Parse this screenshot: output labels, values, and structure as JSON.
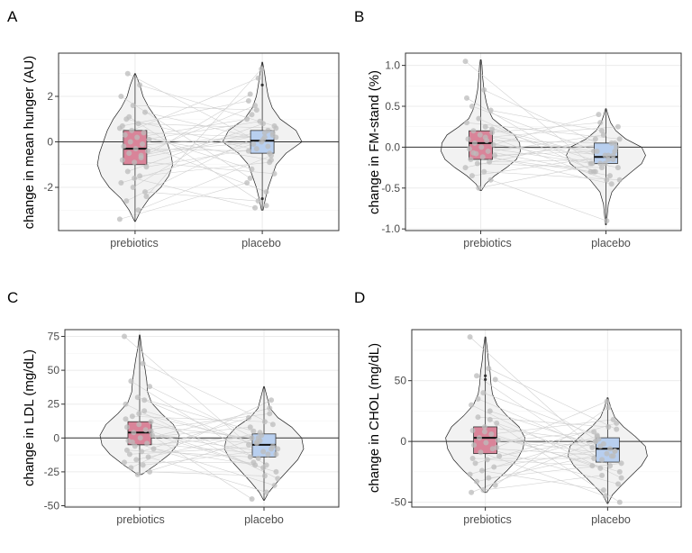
{
  "colors": {
    "prebiotics_fill": "#d98499",
    "placebo_fill": "#b8cfef",
    "violin_fill": "#f2f2f2",
    "point": "#bcbcbc",
    "link": "#d0d0d0",
    "grid": "#ebebeb",
    "zero_line": "#333333"
  },
  "chart_data": [
    {
      "panel": "A",
      "type": "violin-box",
      "ylabel": "change in mean hunger (AU)",
      "categories": [
        "prebiotics",
        "placebo"
      ],
      "ylim": [
        -3.9,
        3.9
      ],
      "yticks": [
        -2,
        0,
        2
      ],
      "ytick_labels": [
        "-2",
        "0",
        "2"
      ],
      "minor_ticks": [
        -3,
        -1,
        1,
        3
      ],
      "groups": [
        {
          "name": "prebiotics",
          "min": -3.5,
          "q1": -1.0,
          "median": -0.3,
          "q3": 0.5,
          "max": 3.0,
          "density": [
            [
              -3.5,
              0.01
            ],
            [
              -3.0,
              0.15
            ],
            [
              -2.5,
              0.35
            ],
            [
              -2.0,
              0.65
            ],
            [
              -1.5,
              0.85
            ],
            [
              -1.0,
              0.95
            ],
            [
              -0.5,
              0.9
            ],
            [
              0.0,
              0.8
            ],
            [
              0.5,
              0.7
            ],
            [
              1.0,
              0.55
            ],
            [
              1.5,
              0.35
            ],
            [
              2.0,
              0.2
            ],
            [
              2.5,
              0.12
            ],
            [
              3.0,
              0.01
            ]
          ],
          "outliers": []
        },
        {
          "name": "placebo",
          "min": -3.0,
          "q1": -0.5,
          "median": 0.05,
          "q3": 0.5,
          "max": 3.5,
          "density": [
            [
              -3.0,
              0.02
            ],
            [
              -2.5,
              0.08
            ],
            [
              -2.0,
              0.15
            ],
            [
              -1.5,
              0.25
            ],
            [
              -1.0,
              0.35
            ],
            [
              -0.5,
              0.6
            ],
            [
              0.0,
              1.0
            ],
            [
              0.5,
              0.85
            ],
            [
              1.0,
              0.45
            ],
            [
              1.5,
              0.25
            ],
            [
              2.0,
              0.15
            ],
            [
              2.5,
              0.1
            ],
            [
              3.0,
              0.06
            ],
            [
              3.5,
              0.01
            ]
          ],
          "outliers": [
            2.5,
            -2.5
          ]
        }
      ],
      "pairs": [
        [
          -3.4,
          -1.8
        ],
        [
          -3.0,
          -0.6
        ],
        [
          -2.6,
          0.4
        ],
        [
          -2.2,
          -2.6
        ],
        [
          -2.0,
          1.2
        ],
        [
          -1.8,
          0.2
        ],
        [
          -1.5,
          -0.9
        ],
        [
          -1.3,
          0.8
        ],
        [
          -1.1,
          -0.3
        ],
        [
          -0.9,
          2.1
        ],
        [
          -0.8,
          -1.4
        ],
        [
          -0.6,
          0.5
        ],
        [
          -0.5,
          0.0
        ],
        [
          -0.4,
          1.6
        ],
        [
          -0.3,
          -0.4
        ],
        [
          -0.2,
          0.3
        ],
        [
          -0.1,
          -2.2
        ],
        [
          0.0,
          0.9
        ],
        [
          0.1,
          -0.1
        ],
        [
          0.2,
          1.0
        ],
        [
          0.3,
          -0.8
        ],
        [
          0.4,
          0.2
        ],
        [
          0.5,
          2.8
        ],
        [
          0.6,
          -1.2
        ],
        [
          0.8,
          0.6
        ],
        [
          1.0,
          -0.5
        ],
        [
          1.3,
          0.1
        ],
        [
          1.6,
          1.4
        ],
        [
          2.0,
          -1.6
        ],
        [
          2.5,
          0.7
        ],
        [
          3.0,
          -0.2
        ],
        [
          -2.4,
          3.2
        ],
        [
          -1.6,
          -2.9
        ],
        [
          0.7,
          1.8
        ],
        [
          -0.7,
          0.4
        ],
        [
          1.1,
          -2.8
        ]
      ]
    },
    {
      "panel": "B",
      "type": "violin-box",
      "ylabel": "change in FM-stand (%)",
      "categories": [
        "prebiotics",
        "placebo"
      ],
      "ylim": [
        -1.02,
        1.15
      ],
      "yticks": [
        -1.0,
        -0.5,
        0.0,
        0.5,
        1.0
      ],
      "ytick_labels": [
        "-1.0",
        "-0.5",
        "0.0",
        "0.5",
        "1.0"
      ],
      "minor_ticks": [
        -0.75,
        -0.25,
        0.25,
        0.75
      ],
      "groups": [
        {
          "name": "prebiotics",
          "min": -0.53,
          "q1": -0.15,
          "median": 0.05,
          "q3": 0.2,
          "max": 1.07,
          "density": [
            [
              -0.53,
              0.02
            ],
            [
              -0.45,
              0.12
            ],
            [
              -0.35,
              0.35
            ],
            [
              -0.25,
              0.65
            ],
            [
              -0.15,
              0.9
            ],
            [
              -0.05,
              1.0
            ],
            [
              0.05,
              0.98
            ],
            [
              0.15,
              0.85
            ],
            [
              0.25,
              0.55
            ],
            [
              0.35,
              0.3
            ],
            [
              0.45,
              0.2
            ],
            [
              0.55,
              0.14
            ],
            [
              0.7,
              0.08
            ],
            [
              0.85,
              0.05
            ],
            [
              1.0,
              0.03
            ],
            [
              1.07,
              0.01
            ]
          ],
          "outliers": []
        },
        {
          "name": "placebo",
          "min": -0.95,
          "q1": -0.2,
          "median": -0.12,
          "q3": 0.05,
          "max": 0.47,
          "density": [
            [
              -0.95,
              0.01
            ],
            [
              -0.85,
              0.03
            ],
            [
              -0.7,
              0.06
            ],
            [
              -0.55,
              0.15
            ],
            [
              -0.4,
              0.4
            ],
            [
              -0.3,
              0.65
            ],
            [
              -0.2,
              0.9
            ],
            [
              -0.1,
              1.0
            ],
            [
              0.0,
              0.9
            ],
            [
              0.1,
              0.5
            ],
            [
              0.2,
              0.25
            ],
            [
              0.3,
              0.12
            ],
            [
              0.4,
              0.05
            ],
            [
              0.47,
              0.01
            ]
          ],
          "outliers": []
        }
      ],
      "pairs": [
        [
          1.05,
          -0.2
        ],
        [
          0.7,
          -0.05
        ],
        [
          0.5,
          -0.1
        ],
        [
          0.45,
          0.2
        ],
        [
          0.35,
          -0.3
        ],
        [
          0.3,
          0.1
        ],
        [
          0.25,
          -0.15
        ],
        [
          0.2,
          -0.4
        ],
        [
          0.18,
          0.3
        ],
        [
          0.15,
          -0.05
        ],
        [
          0.1,
          -0.25
        ],
        [
          0.08,
          0.05
        ],
        [
          0.05,
          -0.1
        ],
        [
          0.03,
          0.4
        ],
        [
          0.0,
          -0.2
        ],
        [
          -0.02,
          0.0
        ],
        [
          -0.05,
          -0.35
        ],
        [
          -0.08,
          0.15
        ],
        [
          -0.1,
          -0.05
        ],
        [
          -0.12,
          -0.3
        ],
        [
          -0.15,
          0.05
        ],
        [
          -0.18,
          -0.15
        ],
        [
          -0.2,
          -0.25
        ],
        [
          -0.25,
          0.1
        ],
        [
          -0.3,
          -0.4
        ],
        [
          -0.35,
          -0.1
        ],
        [
          -0.4,
          -0.9
        ],
        [
          -0.5,
          -0.2
        ],
        [
          0.6,
          -0.3
        ],
        [
          0.12,
          0.25
        ],
        [
          -0.07,
          -0.45
        ],
        [
          0.22,
          -0.2
        ]
      ]
    },
    {
      "panel": "C",
      "type": "violin-box",
      "ylabel": "change in LDL (mg/dL)",
      "categories": [
        "prebiotics",
        "placebo"
      ],
      "ylim": [
        -51,
        80
      ],
      "yticks": [
        -50,
        -25,
        0,
        25,
        50,
        75
      ],
      "ytick_labels": [
        "-50",
        "-25",
        "0",
        "25",
        "50",
        "75"
      ],
      "minor_ticks": [
        -37.5,
        -12.5,
        12.5,
        37.5,
        62.5
      ],
      "groups": [
        {
          "name": "prebiotics",
          "min": -27,
          "q1": -5,
          "median": 4,
          "q3": 12,
          "max": 76,
          "density": [
            [
              -27,
              0.05
            ],
            [
              -20,
              0.4
            ],
            [
              -12,
              0.75
            ],
            [
              -5,
              0.95
            ],
            [
              2,
              1.0
            ],
            [
              10,
              0.85
            ],
            [
              18,
              0.55
            ],
            [
              26,
              0.3
            ],
            [
              34,
              0.2
            ],
            [
              42,
              0.18
            ],
            [
              50,
              0.14
            ],
            [
              58,
              0.1
            ],
            [
              66,
              0.05
            ],
            [
              76,
              0.01
            ]
          ],
          "outliers": []
        },
        {
          "name": "placebo",
          "min": -46,
          "q1": -14,
          "median": -5,
          "q3": 3,
          "max": 38,
          "density": [
            [
              -46,
              0.01
            ],
            [
              -40,
              0.12
            ],
            [
              -32,
              0.35
            ],
            [
              -24,
              0.6
            ],
            [
              -16,
              0.85
            ],
            [
              -8,
              1.0
            ],
            [
              0,
              0.95
            ],
            [
              8,
              0.7
            ],
            [
              15,
              0.35
            ],
            [
              22,
              0.15
            ],
            [
              30,
              0.08
            ],
            [
              38,
              0.01
            ]
          ],
          "outliers": []
        }
      ],
      "pairs": [
        [
          75,
          -5
        ],
        [
          55,
          10
        ],
        [
          42,
          -20
        ],
        [
          38,
          -2
        ],
        [
          30,
          5
        ],
        [
          25,
          -30
        ],
        [
          20,
          -8
        ],
        [
          16,
          12
        ],
        [
          12,
          -15
        ],
        [
          10,
          0
        ],
        [
          8,
          -25
        ],
        [
          6,
          18
        ],
        [
          4,
          -10
        ],
        [
          2,
          -4
        ],
        [
          0,
          8
        ],
        [
          -2,
          -35
        ],
        [
          -4,
          -12
        ],
        [
          -6,
          2
        ],
        [
          -8,
          -20
        ],
        [
          -10,
          15
        ],
        [
          -12,
          -6
        ],
        [
          -14,
          -40
        ],
        [
          -16,
          4
        ],
        [
          -18,
          -18
        ],
        [
          -20,
          -8
        ],
        [
          -22,
          28
        ],
        [
          -25,
          -28
        ],
        [
          -27,
          0
        ],
        [
          14,
          -45
        ],
        [
          28,
          -12
        ],
        [
          -3,
          22
        ],
        [
          5,
          -22
        ],
        [
          18,
          -3
        ],
        [
          -9,
          -14
        ]
      ]
    },
    {
      "panel": "D",
      "type": "violin-box",
      "ylabel": "change in CHOL (mg/dL)",
      "categories": [
        "prebiotics",
        "placebo"
      ],
      "ylim": [
        -54,
        92
      ],
      "yticks": [
        -50,
        0,
        50
      ],
      "ytick_labels": [
        "-50",
        "0",
        "50"
      ],
      "minor_ticks": [
        -25,
        25,
        75
      ],
      "groups": [
        {
          "name": "prebiotics",
          "min": -42,
          "q1": -10,
          "median": 3,
          "q3": 12,
          "max": 86,
          "density": [
            [
              -42,
              0.03
            ],
            [
              -33,
              0.25
            ],
            [
              -24,
              0.55
            ],
            [
              -15,
              0.8
            ],
            [
              -6,
              0.95
            ],
            [
              3,
              1.0
            ],
            [
              12,
              0.85
            ],
            [
              21,
              0.55
            ],
            [
              30,
              0.3
            ],
            [
              39,
              0.18
            ],
            [
              48,
              0.14
            ],
            [
              57,
              0.12
            ],
            [
              66,
              0.08
            ],
            [
              76,
              0.05
            ],
            [
              86,
              0.01
            ]
          ],
          "outliers": [
            51,
            54
          ]
        },
        {
          "name": "placebo",
          "min": -51,
          "q1": -17,
          "median": -6,
          "q3": 3,
          "max": 36,
          "density": [
            [
              -51,
              0.01
            ],
            [
              -44,
              0.12
            ],
            [
              -36,
              0.35
            ],
            [
              -28,
              0.6
            ],
            [
              -20,
              0.85
            ],
            [
              -12,
              1.0
            ],
            [
              -4,
              0.95
            ],
            [
              4,
              0.7
            ],
            [
              12,
              0.4
            ],
            [
              20,
              0.18
            ],
            [
              28,
              0.08
            ],
            [
              36,
              0.01
            ]
          ],
          "outliers": []
        }
      ],
      "pairs": [
        [
          86,
          -5
        ],
        [
          60,
          10
        ],
        [
          54,
          -20
        ],
        [
          51,
          -2
        ],
        [
          40,
          5
        ],
        [
          30,
          -30
        ],
        [
          25,
          -8
        ],
        [
          20,
          12
        ],
        [
          15,
          -15
        ],
        [
          12,
          0
        ],
        [
          9,
          -25
        ],
        [
          6,
          18
        ],
        [
          3,
          -10
        ],
        [
          1,
          -4
        ],
        [
          -1,
          8
        ],
        [
          -3,
          -35
        ],
        [
          -6,
          -12
        ],
        [
          -9,
          -45
        ],
        [
          -12,
          2
        ],
        [
          -15,
          -20
        ],
        [
          -18,
          15
        ],
        [
          -21,
          -6
        ],
        [
          -24,
          -40
        ],
        [
          -27,
          4
        ],
        [
          -30,
          -18
        ],
        [
          -33,
          -8
        ],
        [
          -36,
          28
        ],
        [
          -40,
          -28
        ],
        [
          -42,
          0
        ],
        [
          18,
          -50
        ],
        [
          35,
          -12
        ],
        [
          -5,
          33
        ],
        [
          8,
          -22
        ],
        [
          -14,
          -14
        ]
      ]
    }
  ],
  "panels": [
    {
      "id": "A",
      "label": "A",
      "ylabel": "change in mean hunger (AU)",
      "cat1": "prebiotics",
      "cat2": "placebo"
    },
    {
      "id": "B",
      "label": "B",
      "ylabel": "change in FM-stand (%)",
      "cat1": "prebiotics",
      "cat2": "placebo"
    },
    {
      "id": "C",
      "label": "C",
      "ylabel": "change in LDL (mg/dL)",
      "cat1": "prebiotics",
      "cat2": "placebo"
    },
    {
      "id": "D",
      "label": "D",
      "ylabel": "change in CHOL (mg/dL)",
      "cat1": "prebiotics",
      "cat2": "placebo"
    }
  ]
}
